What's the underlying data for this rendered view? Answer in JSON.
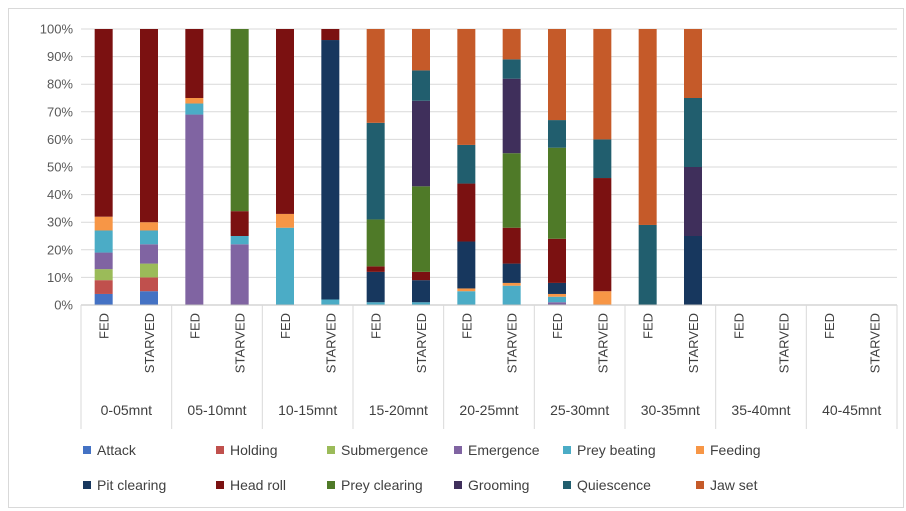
{
  "chart_data": {
    "type": "bar",
    "stacked": "percent",
    "ylim": [
      0,
      100
    ],
    "y_ticks": [
      "0%",
      "10%",
      "20%",
      "30%",
      "40%",
      "50%",
      "60%",
      "70%",
      "80%",
      "90%",
      "100%"
    ],
    "grid": "horizontal",
    "legend_position": "bottom",
    "groups": [
      "0-05mnt",
      "05-10mnt",
      "10-15mnt",
      "15-20mnt",
      "20-25mnt",
      "25-30mnt",
      "30-35mnt",
      "35-40mnt",
      "40-45mnt"
    ],
    "subcategories": [
      "FED",
      "STARVED"
    ],
    "categories": [
      "0-05mnt FED",
      "0-05mnt STARVED",
      "05-10mnt FED",
      "05-10mnt STARVED",
      "10-15mnt FED",
      "10-15mnt STARVED",
      "15-20mnt FED",
      "15-20mnt STARVED",
      "20-25mnt FED",
      "20-25mnt STARVED",
      "25-30mnt FED",
      "25-30mnt STARVED",
      "30-35mnt FED",
      "30-35mnt STARVED",
      "35-40mnt FED",
      "35-40mnt STARVED",
      "40-45mnt FED",
      "40-45mnt STARVED"
    ],
    "series": [
      {
        "name": "Attack",
        "color": "#4472c4",
        "values": [
          4,
          5,
          0,
          0,
          0,
          0,
          0,
          0,
          0,
          0,
          0,
          0,
          0,
          0,
          0,
          0,
          0,
          0
        ]
      },
      {
        "name": "Holding",
        "color": "#c0504d",
        "values": [
          5,
          5,
          0,
          0,
          0,
          0,
          0,
          0,
          0,
          0,
          0,
          0,
          0,
          0,
          0,
          0,
          0,
          0
        ]
      },
      {
        "name": "Submergence",
        "color": "#9bbb59",
        "values": [
          4,
          5,
          0,
          0,
          0,
          0,
          0,
          0,
          0,
          0,
          0,
          0,
          0,
          0,
          0,
          0,
          0,
          0
        ]
      },
      {
        "name": "Emergence",
        "color": "#8064a2",
        "values": [
          6,
          7,
          69,
          22,
          0,
          0,
          0,
          0,
          0,
          0,
          1,
          0,
          0,
          0,
          0,
          0,
          0,
          0
        ]
      },
      {
        "name": "Prey beating",
        "color": "#4bacc6",
        "values": [
          8,
          5,
          4,
          3,
          28,
          2,
          1,
          1,
          5,
          7,
          2,
          0,
          0,
          0,
          0,
          0,
          0,
          0
        ]
      },
      {
        "name": "Feeding",
        "color": "#f79646",
        "values": [
          5,
          3,
          2,
          0,
          5,
          0,
          0,
          0,
          1,
          1,
          1,
          5,
          0,
          0,
          0,
          0,
          0,
          0
        ]
      },
      {
        "name": "Pit clearing",
        "color": "#17375e",
        "values": [
          0,
          0,
          0,
          0,
          0,
          94,
          11,
          8,
          17,
          7,
          4,
          0,
          0,
          25,
          0,
          0,
          0,
          0
        ]
      },
      {
        "name": "Head roll",
        "color": "#7b1111",
        "values": [
          68,
          70,
          25,
          9,
          67,
          4,
          2,
          3,
          21,
          13,
          16,
          41,
          0,
          0,
          0,
          0,
          0,
          0
        ]
      },
      {
        "name": "Prey clearing",
        "color": "#4f7a28",
        "values": [
          0,
          0,
          0,
          66,
          0,
          0,
          17,
          31,
          0,
          27,
          33,
          0,
          0,
          0,
          0,
          0,
          0,
          0
        ]
      },
      {
        "name": "Grooming",
        "color": "#3f2f5b",
        "values": [
          0,
          0,
          0,
          0,
          0,
          0,
          0,
          31,
          0,
          27,
          0,
          0,
          0,
          25,
          0,
          0,
          0,
          0
        ]
      },
      {
        "name": "Quiescence",
        "color": "#215e6e",
        "values": [
          0,
          0,
          0,
          0,
          0,
          0,
          35,
          11,
          14,
          7,
          10,
          14,
          29,
          25,
          0,
          0,
          0,
          0
        ]
      },
      {
        "name": "Jaw set",
        "color": "#c55a29",
        "values": [
          0,
          0,
          0,
          0,
          0,
          0,
          34,
          15,
          42,
          11,
          33,
          40,
          71,
          25,
          0,
          0,
          0,
          0
        ]
      }
    ]
  }
}
